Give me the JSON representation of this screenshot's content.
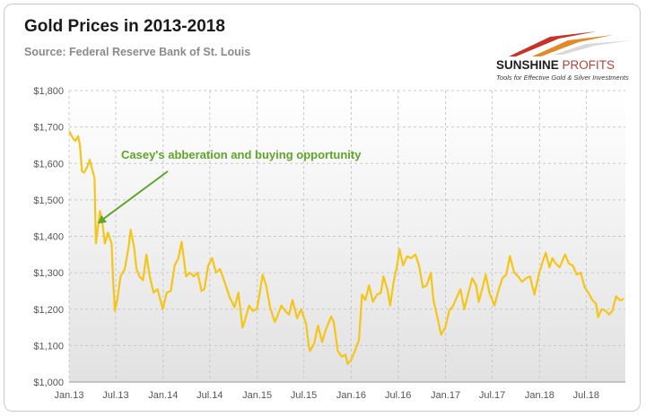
{
  "title": "Gold Prices in 2013-2018",
  "subtitle": "Source: Federal Reserve Bank of St. Louis",
  "logo": {
    "name_part1": "SUNSHINE",
    "name_part2": "PROFITS",
    "tagline": "Tools for Effective Gold & Silver Investments"
  },
  "colors": {
    "line": "#f5c518",
    "annotation": "#5ea52a",
    "plot_bg_top": "#ffffff",
    "plot_bg_bottom": "#e2e2e2",
    "grid": "#c8c8c8"
  },
  "chart_data": {
    "type": "line",
    "title": "Gold Prices in 2013-2018",
    "xlabel": "",
    "ylabel": "",
    "ylim": [
      1000,
      1800
    ],
    "xlim": [
      "2013-01-01",
      "2018-11-30"
    ],
    "grid": true,
    "legend": "none",
    "y_ticks": [
      1000,
      1100,
      1200,
      1300,
      1400,
      1500,
      1600,
      1700,
      1800
    ],
    "y_tick_labels": [
      "$1,000",
      "$1,100",
      "$1,200",
      "$1,300",
      "$1,400",
      "$1,500",
      "$1,600",
      "$1,700",
      "$1,800"
    ],
    "x_ticks": [
      "2013-01-01",
      "2013-07-01",
      "2014-01-01",
      "2014-07-01",
      "2015-01-01",
      "2015-07-01",
      "2016-01-01",
      "2016-07-01",
      "2017-01-01",
      "2017-07-01",
      "2018-01-01",
      "2018-07-01"
    ],
    "x_tick_labels": [
      "Jan.13",
      "Jul.13",
      "Jan.14",
      "Jul.14",
      "Jan.15",
      "Jul.15",
      "Jan.16",
      "Jul.16",
      "Jan.17",
      "Jul.17",
      "Jan.18",
      "Jul.18"
    ],
    "annotation": {
      "text": "Casey's abberation and buying opportunity",
      "point": {
        "x": "2013-04-15",
        "y": 1430
      }
    },
    "series": [
      {
        "values": [
          {
            "x": "2013-01-02",
            "y": 1688
          },
          {
            "x": "2013-01-15",
            "y": 1670
          },
          {
            "x": "2013-01-25",
            "y": 1662
          },
          {
            "x": "2013-02-05",
            "y": 1675
          },
          {
            "x": "2013-02-12",
            "y": 1650
          },
          {
            "x": "2013-02-20",
            "y": 1578
          },
          {
            "x": "2013-03-01",
            "y": 1575
          },
          {
            "x": "2013-03-12",
            "y": 1590
          },
          {
            "x": "2013-03-22",
            "y": 1610
          },
          {
            "x": "2013-04-02",
            "y": 1580
          },
          {
            "x": "2013-04-10",
            "y": 1560
          },
          {
            "x": "2013-04-12",
            "y": 1480
          },
          {
            "x": "2013-04-15",
            "y": 1380
          },
          {
            "x": "2013-04-22",
            "y": 1420
          },
          {
            "x": "2013-05-01",
            "y": 1470
          },
          {
            "x": "2013-05-10",
            "y": 1440
          },
          {
            "x": "2013-05-20",
            "y": 1380
          },
          {
            "x": "2013-06-01",
            "y": 1410
          },
          {
            "x": "2013-06-15",
            "y": 1380
          },
          {
            "x": "2013-06-20",
            "y": 1290
          },
          {
            "x": "2013-06-28",
            "y": 1195
          },
          {
            "x": "2013-07-08",
            "y": 1230
          },
          {
            "x": "2013-07-20",
            "y": 1290
          },
          {
            "x": "2013-08-05",
            "y": 1310
          },
          {
            "x": "2013-08-20",
            "y": 1370
          },
          {
            "x": "2013-08-28",
            "y": 1418
          },
          {
            "x": "2013-09-10",
            "y": 1370
          },
          {
            "x": "2013-09-20",
            "y": 1310
          },
          {
            "x": "2013-10-01",
            "y": 1290
          },
          {
            "x": "2013-10-15",
            "y": 1280
          },
          {
            "x": "2013-10-28",
            "y": 1350
          },
          {
            "x": "2013-11-10",
            "y": 1290
          },
          {
            "x": "2013-11-25",
            "y": 1245
          },
          {
            "x": "2013-12-10",
            "y": 1255
          },
          {
            "x": "2013-12-31",
            "y": 1200
          },
          {
            "x": "2014-01-15",
            "y": 1245
          },
          {
            "x": "2014-01-31",
            "y": 1250
          },
          {
            "x": "2014-02-15",
            "y": 1320
          },
          {
            "x": "2014-03-01",
            "y": 1340
          },
          {
            "x": "2014-03-14",
            "y": 1385
          },
          {
            "x": "2014-03-31",
            "y": 1290
          },
          {
            "x": "2014-04-15",
            "y": 1300
          },
          {
            "x": "2014-04-30",
            "y": 1290
          },
          {
            "x": "2014-05-15",
            "y": 1300
          },
          {
            "x": "2014-05-30",
            "y": 1250
          },
          {
            "x": "2014-06-10",
            "y": 1255
          },
          {
            "x": "2014-06-25",
            "y": 1320
          },
          {
            "x": "2014-07-10",
            "y": 1340
          },
          {
            "x": "2014-07-25",
            "y": 1300
          },
          {
            "x": "2014-08-10",
            "y": 1310
          },
          {
            "x": "2014-08-25",
            "y": 1280
          },
          {
            "x": "2014-09-15",
            "y": 1235
          },
          {
            "x": "2014-10-05",
            "y": 1205
          },
          {
            "x": "2014-10-20",
            "y": 1245
          },
          {
            "x": "2014-11-05",
            "y": 1150
          },
          {
            "x": "2014-11-15",
            "y": 1170
          },
          {
            "x": "2014-12-01",
            "y": 1210
          },
          {
            "x": "2014-12-15",
            "y": 1195
          },
          {
            "x": "2014-12-31",
            "y": 1200
          },
          {
            "x": "2015-01-10",
            "y": 1240
          },
          {
            "x": "2015-01-22",
            "y": 1295
          },
          {
            "x": "2015-02-05",
            "y": 1265
          },
          {
            "x": "2015-02-20",
            "y": 1205
          },
          {
            "x": "2015-03-10",
            "y": 1165
          },
          {
            "x": "2015-03-20",
            "y": 1180
          },
          {
            "x": "2015-04-05",
            "y": 1210
          },
          {
            "x": "2015-04-20",
            "y": 1195
          },
          {
            "x": "2015-05-05",
            "y": 1185
          },
          {
            "x": "2015-05-18",
            "y": 1225
          },
          {
            "x": "2015-06-05",
            "y": 1175
          },
          {
            "x": "2015-06-20",
            "y": 1200
          },
          {
            "x": "2015-07-10",
            "y": 1160
          },
          {
            "x": "2015-07-20",
            "y": 1100
          },
          {
            "x": "2015-07-25",
            "y": 1085
          },
          {
            "x": "2015-08-10",
            "y": 1105
          },
          {
            "x": "2015-08-25",
            "y": 1155
          },
          {
            "x": "2015-09-10",
            "y": 1110
          },
          {
            "x": "2015-09-25",
            "y": 1145
          },
          {
            "x": "2015-10-15",
            "y": 1180
          },
          {
            "x": "2015-10-25",
            "y": 1165
          },
          {
            "x": "2015-11-10",
            "y": 1085
          },
          {
            "x": "2015-11-25",
            "y": 1070
          },
          {
            "x": "2015-12-10",
            "y": 1075
          },
          {
            "x": "2015-12-18",
            "y": 1050
          },
          {
            "x": "2015-12-31",
            "y": 1060
          },
          {
            "x": "2016-01-15",
            "y": 1085
          },
          {
            "x": "2016-01-31",
            "y": 1115
          },
          {
            "x": "2016-02-12",
            "y": 1240
          },
          {
            "x": "2016-02-25",
            "y": 1225
          },
          {
            "x": "2016-03-10",
            "y": 1265
          },
          {
            "x": "2016-03-25",
            "y": 1220
          },
          {
            "x": "2016-04-10",
            "y": 1240
          },
          {
            "x": "2016-04-25",
            "y": 1245
          },
          {
            "x": "2016-05-05",
            "y": 1290
          },
          {
            "x": "2016-05-20",
            "y": 1255
          },
          {
            "x": "2016-05-31",
            "y": 1210
          },
          {
            "x": "2016-06-15",
            "y": 1280
          },
          {
            "x": "2016-06-27",
            "y": 1320
          },
          {
            "x": "2016-07-06",
            "y": 1365
          },
          {
            "x": "2016-07-20",
            "y": 1320
          },
          {
            "x": "2016-08-05",
            "y": 1345
          },
          {
            "x": "2016-08-20",
            "y": 1340
          },
          {
            "x": "2016-09-06",
            "y": 1350
          },
          {
            "x": "2016-09-20",
            "y": 1320
          },
          {
            "x": "2016-10-05",
            "y": 1260
          },
          {
            "x": "2016-10-20",
            "y": 1265
          },
          {
            "x": "2016-11-05",
            "y": 1300
          },
          {
            "x": "2016-11-15",
            "y": 1225
          },
          {
            "x": "2016-12-01",
            "y": 1175
          },
          {
            "x": "2016-12-15",
            "y": 1130
          },
          {
            "x": "2016-12-31",
            "y": 1150
          },
          {
            "x": "2017-01-15",
            "y": 1195
          },
          {
            "x": "2017-01-31",
            "y": 1210
          },
          {
            "x": "2017-02-15",
            "y": 1235
          },
          {
            "x": "2017-02-28",
            "y": 1255
          },
          {
            "x": "2017-03-15",
            "y": 1200
          },
          {
            "x": "2017-03-31",
            "y": 1245
          },
          {
            "x": "2017-04-15",
            "y": 1285
          },
          {
            "x": "2017-04-30",
            "y": 1265
          },
          {
            "x": "2017-05-10",
            "y": 1220
          },
          {
            "x": "2017-05-25",
            "y": 1260
          },
          {
            "x": "2017-06-06",
            "y": 1295
          },
          {
            "x": "2017-06-20",
            "y": 1245
          },
          {
            "x": "2017-07-10",
            "y": 1210
          },
          {
            "x": "2017-07-25",
            "y": 1250
          },
          {
            "x": "2017-08-10",
            "y": 1285
          },
          {
            "x": "2017-08-25",
            "y": 1295
          },
          {
            "x": "2017-09-08",
            "y": 1346
          },
          {
            "x": "2017-09-25",
            "y": 1300
          },
          {
            "x": "2017-10-10",
            "y": 1290
          },
          {
            "x": "2017-10-25",
            "y": 1275
          },
          {
            "x": "2017-11-10",
            "y": 1285
          },
          {
            "x": "2017-11-25",
            "y": 1290
          },
          {
            "x": "2017-12-12",
            "y": 1240
          },
          {
            "x": "2017-12-31",
            "y": 1300
          },
          {
            "x": "2018-01-15",
            "y": 1335
          },
          {
            "x": "2018-01-25",
            "y": 1355
          },
          {
            "x": "2018-02-08",
            "y": 1315
          },
          {
            "x": "2018-02-20",
            "y": 1340
          },
          {
            "x": "2018-03-05",
            "y": 1325
          },
          {
            "x": "2018-03-20",
            "y": 1315
          },
          {
            "x": "2018-04-10",
            "y": 1350
          },
          {
            "x": "2018-04-25",
            "y": 1325
          },
          {
            "x": "2018-05-10",
            "y": 1320
          },
          {
            "x": "2018-05-25",
            "y": 1295
          },
          {
            "x": "2018-06-10",
            "y": 1300
          },
          {
            "x": "2018-06-25",
            "y": 1260
          },
          {
            "x": "2018-07-10",
            "y": 1245
          },
          {
            "x": "2018-07-25",
            "y": 1225
          },
          {
            "x": "2018-08-08",
            "y": 1215
          },
          {
            "x": "2018-08-16",
            "y": 1178
          },
          {
            "x": "2018-08-30",
            "y": 1200
          },
          {
            "x": "2018-09-15",
            "y": 1195
          },
          {
            "x": "2018-09-28",
            "y": 1185
          },
          {
            "x": "2018-10-10",
            "y": 1195
          },
          {
            "x": "2018-10-25",
            "y": 1235
          },
          {
            "x": "2018-11-08",
            "y": 1225
          },
          {
            "x": "2018-11-16",
            "y": 1225
          },
          {
            "x": "2018-11-23",
            "y": 1230
          }
        ]
      }
    ]
  }
}
